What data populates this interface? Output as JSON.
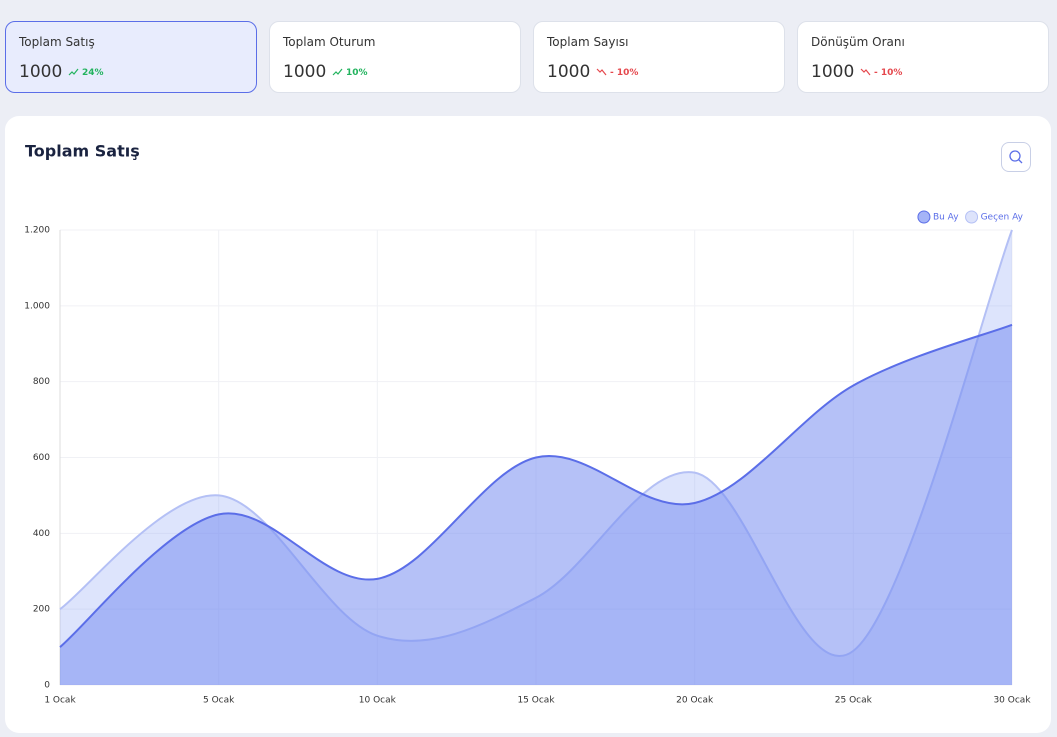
{
  "cards": [
    {
      "title": "Toplam Satış",
      "value": "1000",
      "change": "24%",
      "trend": "up"
    },
    {
      "title": "Toplam Oturum",
      "value": "1000",
      "change": "10%",
      "trend": "up"
    },
    {
      "title": "Toplam Sayısı",
      "value": "1000",
      "change": "- 10%",
      "trend": "down"
    },
    {
      "title": "Dönüşüm Oranı",
      "value": "1000",
      "change": "- 10%",
      "trend": "down"
    }
  ],
  "chart_data": {
    "type": "line",
    "title": "Toplam Satış",
    "categories": [
      "1 Ocak",
      "5 Ocak",
      "10 Ocak",
      "15 Ocak",
      "20 Ocak",
      "25 Ocak",
      "30 Ocak"
    ],
    "series": [
      {
        "name": "Bu Ay",
        "color": "#5b6ee8",
        "values": [
          100,
          450,
          280,
          600,
          480,
          790,
          950
        ]
      },
      {
        "name": "Geçen Ay",
        "color": "#b4c0f5",
        "values": [
          200,
          500,
          130,
          230,
          560,
          90,
          1200
        ]
      }
    ],
    "ylim": [
      0,
      1200
    ],
    "yticks": [
      0,
      200,
      400,
      600,
      800,
      {
        "value": 1000,
        "label": "1.000"
      },
      {
        "value": 1200,
        "label": "1.200"
      }
    ],
    "grid": true,
    "legend": "top-right",
    "fill": true
  }
}
